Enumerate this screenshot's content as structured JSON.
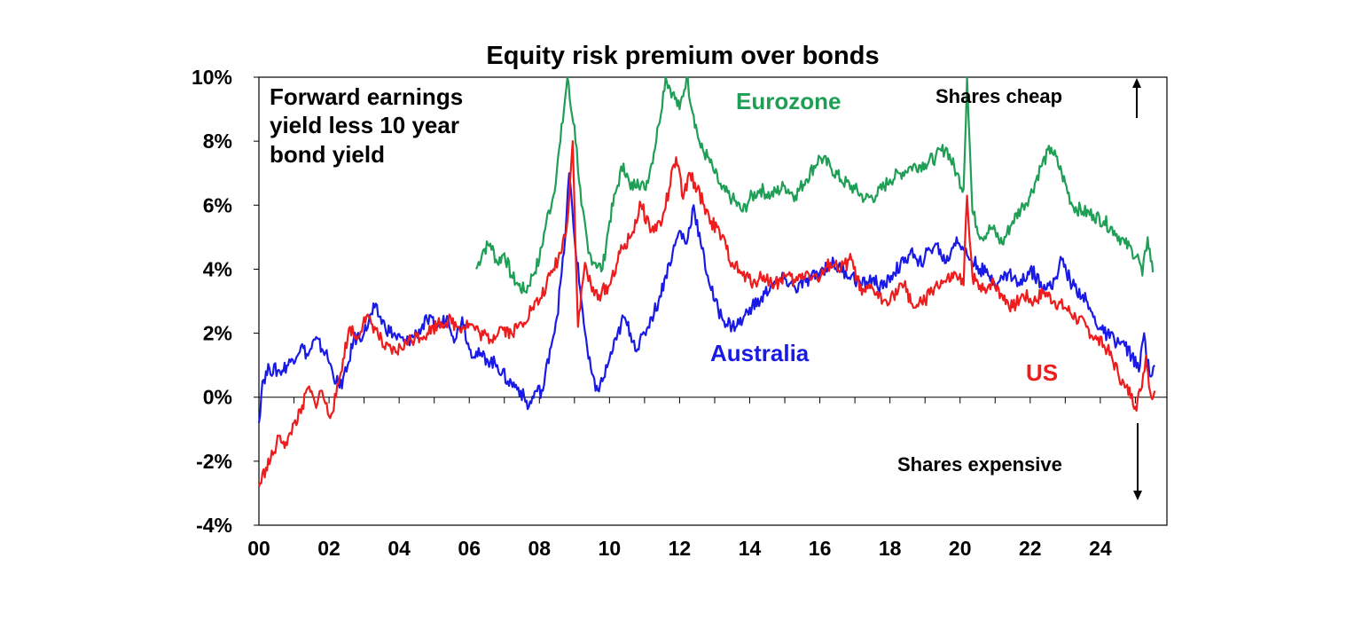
{
  "chart_data": {
    "type": "line",
    "title": "Equity risk premium over bonds",
    "annotation": [
      "Forward earnings",
      "yield less 10 year",
      "bond yield"
    ],
    "upper_note": "Shares cheap",
    "lower_note": "Shares expensive",
    "xlabel": "",
    "ylabel": "",
    "xlim": [
      2000,
      2025.9
    ],
    "ylim": [
      -4,
      10
    ],
    "y_ticks": [
      "-4%",
      "-2%",
      "0%",
      "2%",
      "4%",
      "6%",
      "8%",
      "10%"
    ],
    "y_tick_values": [
      -4,
      -2,
      0,
      2,
      4,
      6,
      8,
      10
    ],
    "x_ticks": [
      "00",
      "02",
      "04",
      "06",
      "08",
      "10",
      "12",
      "14",
      "16",
      "18",
      "20",
      "22",
      "24"
    ],
    "x_tick_values": [
      2000,
      2002,
      2004,
      2006,
      2008,
      2010,
      2012,
      2014,
      2016,
      2018,
      2020,
      2022,
      2024
    ],
    "grid": false,
    "series": [
      {
        "name": "Eurozone",
        "color": "#1f9e55",
        "x": [
          2006.2,
          2006.4,
          2006.6,
          2006.8,
          2007.0,
          2007.2,
          2007.4,
          2007.6,
          2007.8,
          2008.0,
          2008.2,
          2008.4,
          2008.6,
          2008.8,
          2008.9,
          2009.0,
          2009.2,
          2009.4,
          2009.6,
          2009.8,
          2010.0,
          2010.2,
          2010.4,
          2010.6,
          2010.8,
          2011.0,
          2011.2,
          2011.4,
          2011.6,
          2011.8,
          2012.0,
          2012.2,
          2012.4,
          2012.6,
          2012.8,
          2013.0,
          2013.2,
          2013.5,
          2013.8,
          2014.0,
          2014.3,
          2014.6,
          2015.0,
          2015.3,
          2015.6,
          2016.0,
          2016.3,
          2016.6,
          2017.0,
          2017.3,
          2017.6,
          2018.0,
          2018.3,
          2018.6,
          2019.0,
          2019.3,
          2019.6,
          2019.9,
          2020.1,
          2020.2,
          2020.35,
          2020.6,
          2020.9,
          2021.2,
          2021.5,
          2021.8,
          2022.0,
          2022.3,
          2022.6,
          2022.9,
          2023.2,
          2023.5,
          2023.8,
          2024.1,
          2024.4,
          2024.7,
          2024.9,
          2025.1,
          2025.2,
          2025.35,
          2025.5
        ],
        "y": [
          4.0,
          4.6,
          4.8,
          4.2,
          4.5,
          3.8,
          3.5,
          3.3,
          3.8,
          4.3,
          5.5,
          6.3,
          8.0,
          10.0,
          9.0,
          8.5,
          6.0,
          4.5,
          4.2,
          4.0,
          5.5,
          6.5,
          7.3,
          6.5,
          6.8,
          6.5,
          7.3,
          8.5,
          10.0,
          9.5,
          9.0,
          10.0,
          8.8,
          7.8,
          7.5,
          7.0,
          6.5,
          6.2,
          5.8,
          6.2,
          6.5,
          6.3,
          6.6,
          6.3,
          6.8,
          7.5,
          7.2,
          6.8,
          6.5,
          6.2,
          6.3,
          6.8,
          7.0,
          7.2,
          7.3,
          7.5,
          7.8,
          7.0,
          6.5,
          10.0,
          5.8,
          5.0,
          5.3,
          4.8,
          5.5,
          6.0,
          6.3,
          7.2,
          7.8,
          7.0,
          6.0,
          5.8,
          5.7,
          5.5,
          5.2,
          4.8,
          4.6,
          4.3,
          3.8,
          5.0,
          3.9
        ]
      },
      {
        "name": "Australia",
        "color": "#1a1ae6",
        "x": [
          2000.0,
          2000.1,
          2000.3,
          2000.6,
          2000.9,
          2001.2,
          2001.4,
          2001.6,
          2001.9,
          2002.1,
          2002.3,
          2002.5,
          2002.7,
          2003.0,
          2003.3,
          2003.6,
          2003.9,
          2004.2,
          2004.5,
          2004.8,
          2005.1,
          2005.4,
          2005.6,
          2005.8,
          2006.0,
          2006.3,
          2006.5,
          2006.8,
          2007.1,
          2007.4,
          2007.7,
          2007.9,
          2008.1,
          2008.3,
          2008.5,
          2008.7,
          2008.85,
          2009.0,
          2009.2,
          2009.4,
          2009.6,
          2009.8,
          2010.0,
          2010.2,
          2010.4,
          2010.6,
          2010.8,
          2011.0,
          2011.2,
          2011.4,
          2011.6,
          2011.8,
          2012.0,
          2012.2,
          2012.4,
          2012.6,
          2012.8,
          2013.0,
          2013.2,
          2013.5,
          2013.8,
          2014.0,
          2014.3,
          2014.6,
          2015.0,
          2015.3,
          2015.6,
          2016.0,
          2016.3,
          2016.6,
          2016.9,
          2017.2,
          2017.5,
          2017.8,
          2018.1,
          2018.4,
          2018.6,
          2018.8,
          2019.0,
          2019.3,
          2019.6,
          2019.9,
          2020.1,
          2020.3,
          2020.5,
          2020.8,
          2021.1,
          2021.4,
          2021.7,
          2022.0,
          2022.3,
          2022.6,
          2022.9,
          2023.2,
          2023.5,
          2023.8,
          2024.1,
          2024.4,
          2024.7,
          2024.9,
          2025.1,
          2025.25,
          2025.4,
          2025.55
        ],
        "y": [
          -0.8,
          0.5,
          0.9,
          0.8,
          1.1,
          1.6,
          1.3,
          1.8,
          1.4,
          0.8,
          0.3,
          0.8,
          1.8,
          2.0,
          2.8,
          2.2,
          1.9,
          1.7,
          2.0,
          2.4,
          2.2,
          2.5,
          1.8,
          2.5,
          1.5,
          1.3,
          1.2,
          1.0,
          0.5,
          0.3,
          -0.3,
          0.2,
          0.2,
          1.5,
          2.5,
          4.5,
          7.0,
          5.0,
          3.0,
          1.2,
          0.2,
          0.5,
          1.2,
          1.8,
          2.5,
          2.0,
          1.5,
          2.0,
          2.5,
          3.0,
          3.8,
          4.5,
          5.2,
          4.8,
          6.0,
          4.8,
          3.8,
          3.0,
          2.5,
          2.2,
          2.4,
          2.8,
          3.0,
          3.5,
          3.7,
          3.4,
          3.6,
          3.9,
          4.2,
          4.0,
          3.8,
          3.5,
          3.7,
          3.4,
          3.9,
          4.2,
          4.6,
          4.1,
          4.4,
          4.8,
          4.2,
          5.0,
          4.6,
          4.3,
          4.1,
          3.8,
          3.6,
          3.9,
          3.5,
          4.0,
          3.6,
          3.4,
          4.3,
          3.5,
          3.2,
          2.5,
          2.0,
          1.8,
          1.6,
          1.3,
          0.8,
          2.0,
          0.7,
          1.0
        ]
      },
      {
        "name": "US",
        "color": "#ee1c1c",
        "x": [
          2000.0,
          2000.2,
          2000.4,
          2000.6,
          2000.8,
          2001.0,
          2001.2,
          2001.4,
          2001.6,
          2001.8,
          2002.0,
          2002.2,
          2002.4,
          2002.6,
          2002.8,
          2003.0,
          2003.3,
          2003.6,
          2003.9,
          2004.2,
          2004.5,
          2004.8,
          2005.1,
          2005.4,
          2005.7,
          2006.0,
          2006.3,
          2006.6,
          2006.9,
          2007.2,
          2007.5,
          2007.8,
          2008.0,
          2008.2,
          2008.4,
          2008.6,
          2008.8,
          2008.95,
          2009.1,
          2009.3,
          2009.5,
          2009.7,
          2010.0,
          2010.3,
          2010.6,
          2010.9,
          2011.2,
          2011.5,
          2011.7,
          2011.9,
          2012.1,
          2012.3,
          2012.5,
          2012.7,
          2012.9,
          2013.2,
          2013.5,
          2013.8,
          2014.1,
          2014.4,
          2014.7,
          2015.0,
          2015.3,
          2015.6,
          2016.0,
          2016.3,
          2016.6,
          2016.9,
          2017.2,
          2017.5,
          2017.8,
          2018.1,
          2018.4,
          2018.7,
          2019.0,
          2019.3,
          2019.6,
          2019.9,
          2020.1,
          2020.2,
          2020.35,
          2020.6,
          2020.9,
          2021.2,
          2021.5,
          2021.8,
          2022.1,
          2022.4,
          2022.7,
          2023.0,
          2023.3,
          2023.6,
          2023.9,
          2024.2,
          2024.5,
          2024.7,
          2024.9,
          2025.0,
          2025.15,
          2025.3,
          2025.45,
          2025.55
        ],
        "y": [
          -2.8,
          -2.2,
          -1.8,
          -1.2,
          -1.5,
          -0.8,
          -0.5,
          0.3,
          -0.2,
          0.2,
          -0.6,
          0.0,
          1.2,
          2.2,
          1.8,
          2.5,
          2.2,
          1.5,
          1.4,
          1.7,
          1.9,
          2.0,
          2.3,
          2.4,
          2.2,
          2.3,
          2.0,
          1.8,
          2.2,
          2.0,
          2.3,
          2.8,
          3.0,
          3.5,
          4.0,
          4.5,
          5.5,
          8.0,
          2.2,
          4.2,
          3.3,
          3.2,
          3.5,
          4.5,
          5.0,
          6.0,
          5.2,
          5.5,
          6.5,
          7.5,
          6.2,
          7.0,
          6.5,
          6.0,
          5.5,
          5.0,
          4.2,
          3.8,
          3.6,
          3.8,
          3.5,
          3.8,
          3.6,
          3.9,
          3.7,
          4.2,
          4.0,
          4.3,
          3.2,
          3.4,
          3.0,
          3.2,
          3.5,
          2.8,
          3.0,
          3.5,
          3.6,
          3.8,
          3.5,
          6.3,
          3.8,
          3.3,
          3.6,
          3.2,
          2.8,
          3.2,
          3.0,
          3.3,
          3.0,
          2.8,
          2.5,
          2.2,
          1.8,
          1.5,
          0.8,
          0.3,
          0.1,
          -0.3,
          0.2,
          1.3,
          0.0,
          0.2
        ]
      }
    ]
  }
}
